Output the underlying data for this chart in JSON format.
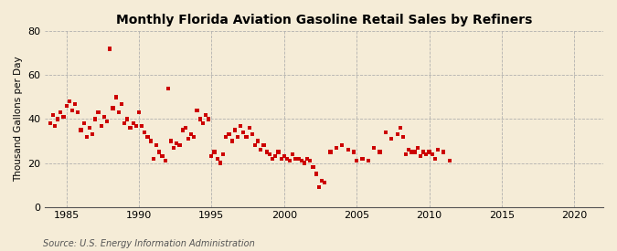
{
  "title": "Monthly Florida Aviation Gasoline Retail Sales by Refiners",
  "ylabel": "Thousand Gallons per Day",
  "source_text": "Source: U.S. Energy Information Administration",
  "background_color": "#f5ecd7",
  "dot_color": "#cc0000",
  "xlim": [
    1983.5,
    2022
  ],
  "ylim": [
    0,
    80
  ],
  "xticks": [
    1985,
    1990,
    1995,
    2000,
    2005,
    2010,
    2015,
    2020
  ],
  "yticks": [
    0,
    20,
    40,
    60,
    80
  ],
  "data_x": [
    1983.9,
    1984.1,
    1984.2,
    1984.4,
    1984.6,
    1984.8,
    1985.0,
    1985.2,
    1985.4,
    1985.6,
    1985.8,
    1986.0,
    1986.2,
    1986.4,
    1986.6,
    1986.8,
    1987.0,
    1987.2,
    1987.4,
    1987.6,
    1987.8,
    1988.0,
    1988.2,
    1988.4,
    1988.6,
    1988.8,
    1989.0,
    1989.2,
    1989.4,
    1989.6,
    1989.8,
    1990.0,
    1990.2,
    1990.4,
    1990.6,
    1990.8,
    1991.0,
    1991.2,
    1991.4,
    1991.6,
    1991.8,
    1992.0,
    1992.2,
    1992.4,
    1992.6,
    1992.8,
    1993.0,
    1993.2,
    1993.4,
    1993.6,
    1993.8,
    1994.0,
    1994.2,
    1994.4,
    1994.6,
    1994.8,
    1995.0,
    1995.2,
    1995.4,
    1995.6,
    1995.8,
    1996.0,
    1996.2,
    1996.4,
    1996.6,
    1996.8,
    1997.0,
    1997.2,
    1997.4,
    1997.6,
    1997.8,
    1998.0,
    1998.2,
    1998.4,
    1998.6,
    1998.8,
    1999.0,
    1999.2,
    1999.4,
    1999.6,
    1999.8,
    2000.0,
    2000.2,
    2000.4,
    2000.6,
    2000.8,
    2001.0,
    2001.2,
    2001.4,
    2001.6,
    2001.8,
    2002.0,
    2002.2,
    2002.4,
    2002.6,
    2002.8,
    2003.2,
    2003.6,
    2004.0,
    2004.4,
    2004.8,
    2005.0,
    2005.4,
    2005.8,
    2006.2,
    2006.6,
    2007.0,
    2007.4,
    2007.8,
    2008.0,
    2008.2,
    2008.4,
    2008.6,
    2008.8,
    2009.0,
    2009.2,
    2009.4,
    2009.6,
    2009.8,
    2010.0,
    2010.2,
    2010.4,
    2010.6,
    2011.0,
    2011.4
  ],
  "data_y": [
    38,
    42,
    37,
    40,
    43,
    41,
    46,
    48,
    44,
    47,
    43,
    35,
    38,
    32,
    36,
    33,
    40,
    43,
    37,
    41,
    39,
    72,
    45,
    50,
    43,
    47,
    38,
    40,
    36,
    38,
    37,
    43,
    37,
    34,
    32,
    30,
    22,
    28,
    25,
    23,
    21,
    54,
    30,
    27,
    29,
    28,
    35,
    36,
    31,
    33,
    32,
    44,
    40,
    38,
    42,
    40,
    23,
    25,
    22,
    20,
    24,
    32,
    33,
    30,
    35,
    32,
    37,
    34,
    32,
    36,
    33,
    28,
    30,
    26,
    28,
    25,
    24,
    22,
    23,
    25,
    22,
    23,
    22,
    21,
    24,
    22,
    22,
    21,
    20,
    22,
    21,
    18,
    15,
    9,
    12,
    11,
    25,
    27,
    28,
    26,
    25,
    21,
    22,
    21,
    27,
    25,
    34,
    31,
    33,
    36,
    32,
    24,
    26,
    25,
    25,
    27,
    23,
    25,
    24,
    25,
    24,
    22,
    26,
    25,
    21
  ]
}
